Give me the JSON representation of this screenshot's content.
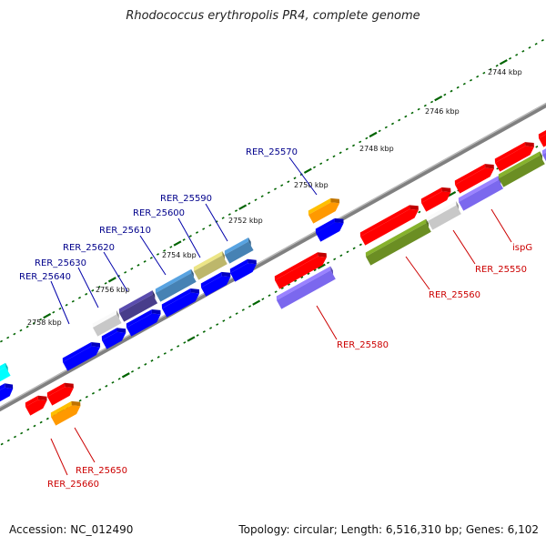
{
  "title": "Rhodococcus erythropolis PR4, complete genome",
  "accession": "Accession: NC_012490",
  "topology": "Topology: circular; Length: 6,516,310 bp; Genes: 6,102",
  "kbp_labels": [
    "2744 kbp",
    "2746 kbp",
    "2748 kbp",
    "2750 kbp",
    "2752 kbp",
    "2754 kbp",
    "2756 kbp",
    "2758 kbp"
  ],
  "colors": {
    "red": "#ff0000",
    "blue": "#0000ff",
    "orange": "#ff9900",
    "gray": "#c8c8c8",
    "olive": "#6b8e23",
    "lavender": "#7b68ee",
    "steel": "#4682b4",
    "khaki": "#bdb76b",
    "indigo": "#483d8b",
    "cyan": "#00ffff",
    "backbone": "#808080",
    "tick": "#006400",
    "label_blue": "#00008b",
    "label_red": "#cc0000"
  },
  "labels_top": [
    "RER_25570",
    "RER_25590",
    "RER_25600",
    "RER_25610",
    "RER_25620",
    "RER_25630",
    "RER_25640"
  ],
  "labels_bottom": [
    "RER_25580",
    "RER_25560",
    "RER_25550",
    "ispG",
    "RER_25650",
    "RER_25660"
  ]
}
